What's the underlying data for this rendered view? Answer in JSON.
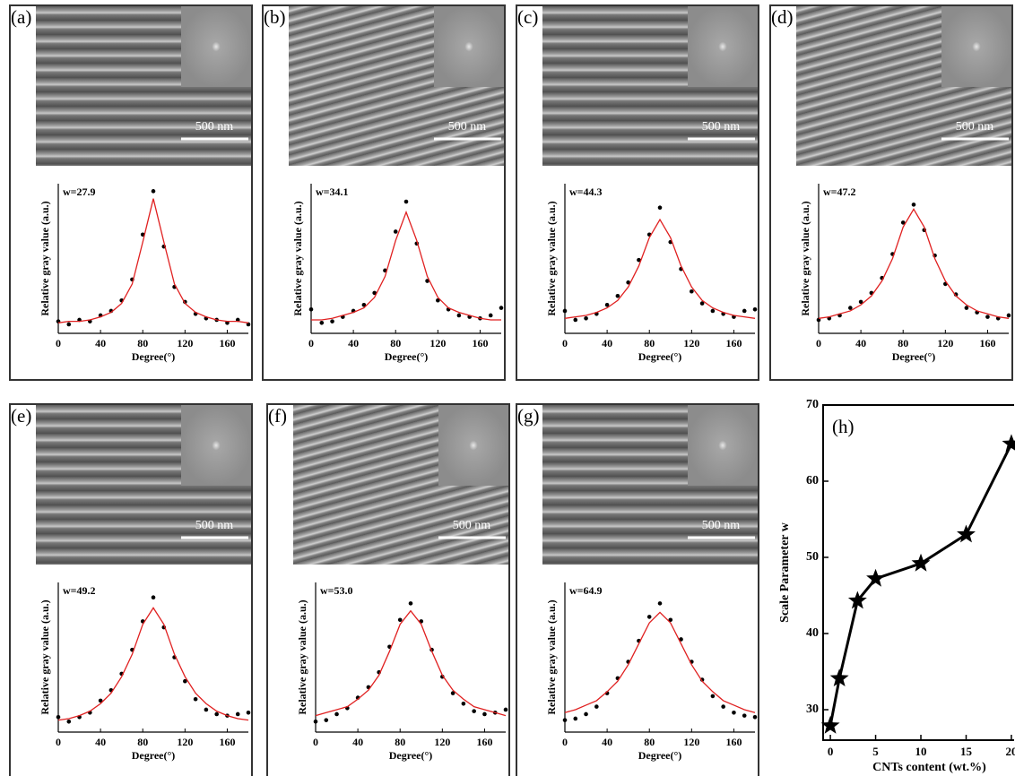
{
  "chart_data": [
    {
      "type": "scatter",
      "panel_label": "(a)",
      "annotation": "w=27.9",
      "scale_bar": "500 nm",
      "xlabel": "Degree(°)",
      "ylabel": "Relative gray value (a.u.)",
      "xlim": [
        0,
        180
      ],
      "xticks": [
        0,
        40,
        80,
        120,
        160
      ],
      "ylim": [
        0,
        1
      ],
      "x": [
        0,
        10,
        20,
        30,
        40,
        50,
        60,
        70,
        80,
        90,
        100,
        110,
        120,
        130,
        140,
        150,
        160,
        170,
        180
      ],
      "series": [
        {
          "mode": "markers",
          "color": "#000000",
          "values": [
            0.08,
            0.06,
            0.09,
            0.08,
            0.12,
            0.15,
            0.22,
            0.36,
            0.66,
            0.95,
            0.58,
            0.31,
            0.21,
            0.13,
            0.1,
            0.09,
            0.07,
            0.09,
            0.06
          ]
        },
        {
          "mode": "lines",
          "color": "#e02020",
          "values": [
            0.07,
            0.08,
            0.08,
            0.09,
            0.11,
            0.14,
            0.2,
            0.33,
            0.61,
            0.9,
            0.61,
            0.33,
            0.2,
            0.14,
            0.11,
            0.09,
            0.08,
            0.08,
            0.07
          ]
        }
      ]
    },
    {
      "type": "scatter",
      "panel_label": "(b)",
      "annotation": "w=34.1",
      "scale_bar": "500 nm",
      "xlabel": "Degree(°)",
      "ylabel": "Relative gray value (a.u.)",
      "xlim": [
        0,
        180
      ],
      "xticks": [
        0,
        40,
        80,
        120,
        160
      ],
      "ylim": [
        0,
        1
      ],
      "x": [
        0,
        10,
        20,
        30,
        40,
        50,
        60,
        70,
        80,
        90,
        100,
        110,
        120,
        130,
        140,
        150,
        160,
        170,
        180
      ],
      "series": [
        {
          "mode": "markers",
          "color": "#000000",
          "values": [
            0.16,
            0.07,
            0.08,
            0.11,
            0.15,
            0.19,
            0.27,
            0.42,
            0.68,
            0.88,
            0.6,
            0.35,
            0.22,
            0.16,
            0.12,
            0.11,
            0.1,
            0.12,
            0.17
          ]
        },
        {
          "mode": "lines",
          "color": "#e02020",
          "values": [
            0.09,
            0.09,
            0.1,
            0.12,
            0.14,
            0.17,
            0.24,
            0.38,
            0.62,
            0.81,
            0.62,
            0.38,
            0.24,
            0.17,
            0.14,
            0.12,
            0.1,
            0.09,
            0.09
          ]
        }
      ]
    },
    {
      "type": "scatter",
      "panel_label": "(c)",
      "annotation": "w=44.3",
      "scale_bar": "500 nm",
      "xlabel": "Degree(°)",
      "ylabel": "Relative gray value (a.u.)",
      "xlim": [
        0,
        180
      ],
      "xticks": [
        0,
        40,
        80,
        120,
        160
      ],
      "ylim": [
        0,
        1
      ],
      "x": [
        0,
        10,
        20,
        30,
        40,
        50,
        60,
        70,
        80,
        90,
        100,
        110,
        120,
        130,
        140,
        150,
        160,
        170,
        180
      ],
      "series": [
        {
          "mode": "markers",
          "color": "#000000",
          "values": [
            0.15,
            0.09,
            0.1,
            0.13,
            0.19,
            0.25,
            0.34,
            0.49,
            0.66,
            0.84,
            0.61,
            0.43,
            0.28,
            0.2,
            0.15,
            0.13,
            0.11,
            0.15,
            0.16
          ]
        },
        {
          "mode": "lines",
          "color": "#e02020",
          "values": [
            0.1,
            0.11,
            0.12,
            0.14,
            0.17,
            0.22,
            0.31,
            0.45,
            0.64,
            0.76,
            0.64,
            0.45,
            0.31,
            0.22,
            0.17,
            0.14,
            0.12,
            0.11,
            0.1
          ]
        }
      ]
    },
    {
      "type": "scatter",
      "panel_label": "(d)",
      "annotation": "w=47.2",
      "scale_bar": "500 nm",
      "xlabel": "Degree(°)",
      "ylabel": "Relative gray value (a.u.)",
      "xlim": [
        0,
        180
      ],
      "xticks": [
        0,
        40,
        80,
        120,
        160
      ],
      "ylim": [
        0,
        1
      ],
      "x": [
        0,
        10,
        20,
        30,
        40,
        50,
        60,
        70,
        80,
        90,
        100,
        110,
        120,
        130,
        140,
        150,
        160,
        170,
        180
      ],
      "series": [
        {
          "mode": "markers",
          "color": "#000000",
          "values": [
            0.09,
            0.1,
            0.12,
            0.17,
            0.21,
            0.27,
            0.37,
            0.53,
            0.74,
            0.86,
            0.69,
            0.52,
            0.33,
            0.26,
            0.17,
            0.14,
            0.11,
            0.1,
            0.12
          ]
        },
        {
          "mode": "lines",
          "color": "#e02020",
          "values": [
            0.1,
            0.11,
            0.13,
            0.15,
            0.19,
            0.25,
            0.35,
            0.5,
            0.71,
            0.83,
            0.71,
            0.5,
            0.35,
            0.25,
            0.19,
            0.15,
            0.13,
            0.11,
            0.1
          ]
        }
      ]
    },
    {
      "type": "scatter",
      "panel_label": "(e)",
      "annotation": "w=49.2",
      "scale_bar": "500 nm",
      "xlabel": "Degree(°)",
      "ylabel": "Relative gray value (a.u.)",
      "xlim": [
        0,
        180
      ],
      "xticks": [
        0,
        40,
        80,
        120,
        160
      ],
      "ylim": [
        0,
        1
      ],
      "x": [
        0,
        10,
        20,
        30,
        40,
        50,
        60,
        70,
        80,
        90,
        100,
        110,
        120,
        130,
        140,
        150,
        160,
        170,
        180
      ],
      "series": [
        {
          "mode": "markers",
          "color": "#000000",
          "values": [
            0.1,
            0.07,
            0.1,
            0.13,
            0.21,
            0.28,
            0.39,
            0.55,
            0.74,
            0.9,
            0.7,
            0.5,
            0.34,
            0.22,
            0.15,
            0.12,
            0.11,
            0.12,
            0.13
          ]
        },
        {
          "mode": "lines",
          "color": "#e02020",
          "values": [
            0.08,
            0.09,
            0.11,
            0.14,
            0.19,
            0.26,
            0.37,
            0.52,
            0.72,
            0.83,
            0.72,
            0.52,
            0.37,
            0.26,
            0.19,
            0.14,
            0.11,
            0.09,
            0.08
          ]
        }
      ]
    },
    {
      "type": "scatter",
      "panel_label": "(f)",
      "annotation": "w=53.0",
      "scale_bar": "500 nm",
      "xlabel": "Degree(°)",
      "ylabel": "Relative gray value (a.u.)",
      "xlim": [
        0,
        180
      ],
      "xticks": [
        0,
        40,
        80,
        120,
        160
      ],
      "ylim": [
        0,
        1
      ],
      "x": [
        0,
        10,
        20,
        30,
        40,
        50,
        60,
        70,
        80,
        90,
        100,
        110,
        120,
        130,
        140,
        150,
        160,
        170,
        180
      ],
      "series": [
        {
          "mode": "markers",
          "color": "#000000",
          "values": [
            0.07,
            0.08,
            0.12,
            0.16,
            0.23,
            0.3,
            0.4,
            0.57,
            0.75,
            0.86,
            0.74,
            0.55,
            0.37,
            0.26,
            0.19,
            0.14,
            0.12,
            0.13,
            0.15
          ]
        },
        {
          "mode": "lines",
          "color": "#e02020",
          "values": [
            0.11,
            0.13,
            0.15,
            0.17,
            0.22,
            0.28,
            0.38,
            0.54,
            0.72,
            0.81,
            0.72,
            0.54,
            0.38,
            0.28,
            0.22,
            0.17,
            0.15,
            0.13,
            0.11
          ]
        }
      ]
    },
    {
      "type": "scatter",
      "panel_label": "(g)",
      "annotation": "w=64.9",
      "scale_bar": "500 nm",
      "xlabel": "Degree(°)",
      "ylabel": "Relative gray value (a.u.)",
      "xlim": [
        0,
        180
      ],
      "xticks": [
        0,
        40,
        80,
        120,
        160
      ],
      "ylim": [
        0,
        1
      ],
      "x": [
        0,
        10,
        20,
        30,
        40,
        50,
        60,
        70,
        80,
        90,
        100,
        110,
        120,
        130,
        140,
        150,
        160,
        170,
        180
      ],
      "series": [
        {
          "mode": "markers",
          "color": "#000000",
          "values": [
            0.08,
            0.09,
            0.12,
            0.17,
            0.26,
            0.36,
            0.47,
            0.61,
            0.77,
            0.86,
            0.75,
            0.62,
            0.47,
            0.35,
            0.24,
            0.17,
            0.13,
            0.11,
            0.1
          ]
        },
        {
          "mode": "lines",
          "color": "#e02020",
          "values": [
            0.13,
            0.15,
            0.18,
            0.21,
            0.27,
            0.34,
            0.45,
            0.59,
            0.73,
            0.8,
            0.73,
            0.59,
            0.45,
            0.34,
            0.27,
            0.21,
            0.18,
            0.15,
            0.13
          ]
        }
      ]
    },
    {
      "type": "line",
      "panel_label": "(h)",
      "xlabel": "CNTs content (wt.%)",
      "ylabel": "Scale Parameter w",
      "color": "#000000",
      "marker": "star",
      "x": [
        0,
        1,
        3,
        5,
        10,
        15,
        20
      ],
      "values": [
        27.9,
        34.1,
        44.3,
        47.2,
        49.2,
        53.0,
        64.9
      ],
      "xlim": [
        -0.8,
        20.3
      ],
      "xticks": [
        0,
        5,
        10,
        15,
        20
      ],
      "ylim": [
        26,
        70
      ],
      "yticks": [
        30,
        40,
        50,
        60,
        70
      ]
    }
  ]
}
